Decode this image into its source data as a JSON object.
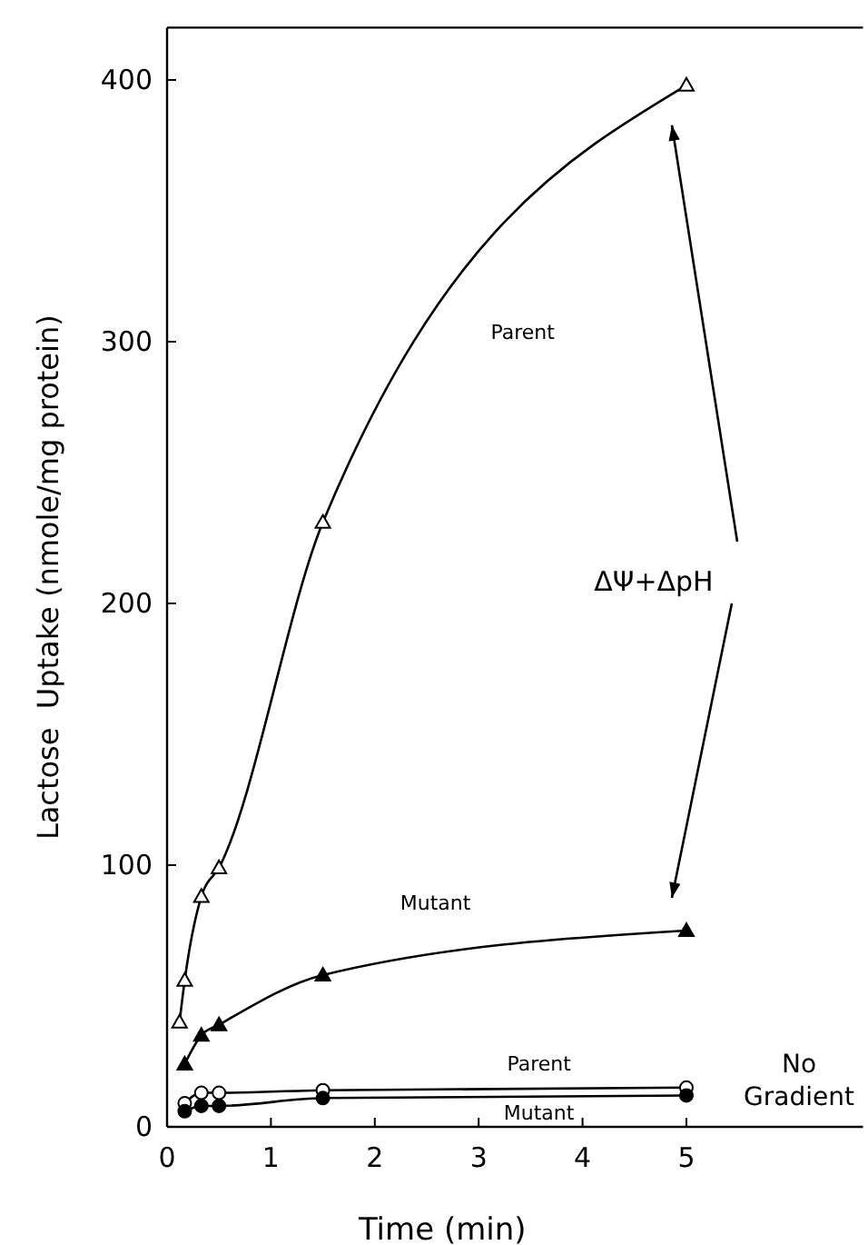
{
  "chart_data": {
    "type": "line",
    "xlabel": "Time (min)",
    "ylabel": "Lactose  Uptake (nmole/mg protein)",
    "xlim": [
      0,
      6.7
    ],
    "ylim": [
      0,
      420
    ],
    "xticks": [
      0,
      1,
      2,
      3,
      4,
      5
    ],
    "yticks": [
      0,
      100,
      200,
      300,
      400
    ],
    "grid": false,
    "series": [
      {
        "name": "Parent",
        "color": "#000000",
        "marker": "triangle",
        "x": [
          0.12,
          0.17,
          0.33,
          0.5,
          1.5,
          5
        ],
        "values": [
          40,
          56,
          88,
          99,
          231,
          398
        ]
      },
      {
        "name": "Mutant",
        "color": "#000000",
        "marker": "triangle",
        "x": [
          0.17,
          0.33,
          0.5,
          1.5,
          5
        ],
        "values": [
          24,
          35,
          39,
          58,
          75
        ]
      },
      {
        "name": "Parent",
        "color": "#000000",
        "marker": "circle",
        "x": [
          0.17,
          0.33,
          0.5,
          1.5,
          5
        ],
        "values": [
          9,
          13,
          13,
          14,
          15
        ]
      },
      {
        "name": "Mutant",
        "color": "#000000",
        "marker": "circle",
        "x": [
          0.17,
          0.33,
          0.5,
          1.5,
          5
        ],
        "values": [
          6,
          8,
          8,
          11,
          12
        ]
      }
    ],
    "annotations": [
      "No Gradient",
      "ΔΨ+ΔpH"
    ]
  }
}
